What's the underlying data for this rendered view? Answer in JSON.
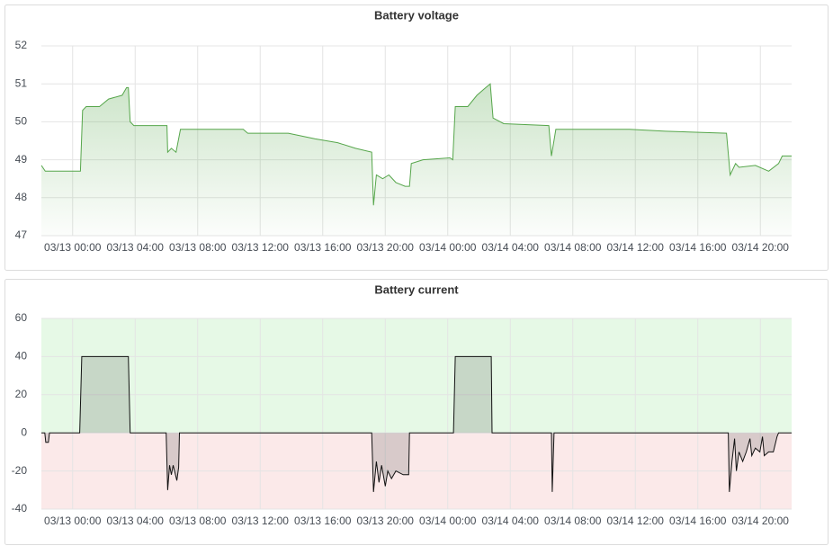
{
  "chart_data": [
    {
      "type": "line",
      "title": "Battery voltage",
      "color": "#56a64b",
      "fill": "gradient",
      "grid": true,
      "xlim": [
        "03/12 22:00",
        "03/14 22:00"
      ],
      "xticks": [
        "03/13 00:00",
        "03/13 04:00",
        "03/13 08:00",
        "03/13 12:00",
        "03/13 16:00",
        "03/13 20:00",
        "03/14 00:00",
        "03/14 04:00",
        "03/14 08:00",
        "03/14 12:00",
        "03/14 16:00",
        "03/14 20:00"
      ],
      "ylim": [
        47,
        52
      ],
      "yticks": [
        47,
        48,
        49,
        50,
        51,
        52
      ],
      "x": [
        "03/12 22:00",
        "03/12 22:15",
        "03/13 00:30",
        "03/13 00:38",
        "03/13 00:52",
        "03/13 01:43",
        "03/13 02:18",
        "03/13 03:10",
        "03/13 03:27",
        "03/13 03:34",
        "03/13 03:41",
        "03/13 03:55",
        "03/13 06:02",
        "03/13 06:05",
        "03/13 06:19",
        "03/13 06:37",
        "03/13 06:54",
        "03/13 10:55",
        "03/13 11:12",
        "03/13 13:48",
        "03/13 15:31",
        "03/13 16:57",
        "03/13 18:06",
        "03/13 19:08",
        "03/13 19:15",
        "03/13 19:26",
        "03/13 19:50",
        "03/13 20:14",
        "03/13 20:41",
        "03/13 21:16",
        "03/13 21:33",
        "03/13 21:40",
        "03/13 22:25",
        "03/14 00:08",
        "03/14 00:19",
        "03/14 00:29",
        "03/14 01:17",
        "03/14 01:52",
        "03/14 02:26",
        "03/14 02:43",
        "03/14 02:54",
        "03/14 03:35",
        "03/14 06:28",
        "03/14 06:38",
        "03/14 06:55",
        "03/14 11:38",
        "03/14 13:56",
        "03/14 17:50",
        "03/14 18:04",
        "03/14 18:25",
        "03/14 18:38",
        "03/14 19:41",
        "03/14 20:32",
        "03/14 21:10",
        "03/14 21:24",
        "03/14 22:00"
      ],
      "values": [
        48.85,
        48.7,
        48.7,
        50.3,
        50.4,
        50.4,
        50.6,
        50.7,
        50.9,
        50.9,
        50.0,
        49.9,
        49.9,
        49.2,
        49.3,
        49.2,
        49.8,
        49.8,
        49.7,
        49.7,
        49.55,
        49.45,
        49.3,
        49.2,
        47.8,
        48.6,
        48.5,
        48.6,
        48.4,
        48.3,
        48.3,
        48.9,
        49.0,
        49.05,
        49.0,
        50.4,
        50.4,
        50.7,
        50.9,
        51.0,
        50.1,
        49.95,
        49.9,
        49.1,
        49.8,
        49.8,
        49.75,
        49.7,
        48.6,
        48.9,
        48.8,
        48.85,
        48.7,
        48.9,
        49.1,
        49.1
      ]
    },
    {
      "type": "line",
      "title": "Battery current",
      "color": "#111111",
      "fill": "zero",
      "grid": true,
      "threshold": 0,
      "above_color": "#e6f9e6",
      "below_color": "#fbe9e9",
      "xlim": [
        "03/12 22:00",
        "03/14 22:00"
      ],
      "xticks": [
        "03/13 00:00",
        "03/13 04:00",
        "03/13 08:00",
        "03/13 12:00",
        "03/13 16:00",
        "03/13 20:00",
        "03/14 00:00",
        "03/14 04:00",
        "03/14 08:00",
        "03/14 12:00",
        "03/14 16:00",
        "03/14 20:00"
      ],
      "ylim": [
        -40,
        60
      ],
      "yticks": [
        -40,
        -20,
        0,
        20,
        40,
        60
      ],
      "x": [
        "03/12 22:00",
        "03/12 22:13",
        "03/12 22:17",
        "03/12 22:27",
        "03/12 22:31",
        "03/13 00:27",
        "03/13 00:35",
        "03/13 03:34",
        "03/13 03:41",
        "03/13 05:59",
        "03/13 06:05",
        "03/13 06:12",
        "03/13 06:19",
        "03/13 06:26",
        "03/13 06:40",
        "03/13 06:47",
        "03/13 06:50",
        "03/13 19:08",
        "03/13 19:15",
        "03/13 19:26",
        "03/13 19:36",
        "03/13 19:46",
        "03/13 20:00",
        "03/13 20:10",
        "03/13 20:24",
        "03/13 20:41",
        "03/13 21:09",
        "03/13 21:30",
        "03/13 21:33",
        "03/14 00:22",
        "03/14 00:29",
        "03/14 02:47",
        "03/14 02:50",
        "03/14 06:38",
        "03/14 06:41",
        "03/14 06:48",
        "03/14 17:57",
        "03/14 18:01",
        "03/14 18:11",
        "03/14 18:21",
        "03/14 18:28",
        "03/14 18:38",
        "03/14 18:52",
        "03/14 19:06",
        "03/14 19:20",
        "03/14 19:27",
        "03/14 19:41",
        "03/14 19:58",
        "03/14 20:08",
        "03/14 20:15",
        "03/14 20:32",
        "03/14 20:50",
        "03/14 21:04",
        "03/14 21:10",
        "03/14 22:00"
      ],
      "values": [
        0,
        0,
        -5,
        -5,
        0,
        0,
        40,
        40,
        0,
        0,
        -30,
        -17,
        -22,
        -17,
        -25,
        -18,
        0,
        0,
        -31,
        -15,
        -26,
        -17,
        -28,
        -20,
        -24,
        -20,
        -22,
        -22,
        0,
        0,
        40,
        40,
        0,
        0,
        -31,
        0,
        0,
        -31,
        -15,
        -3,
        -20,
        -10,
        -15,
        -10,
        -3,
        -12,
        -8,
        -10,
        -2,
        -12,
        -10,
        -10,
        -2,
        0,
        0
      ]
    }
  ]
}
